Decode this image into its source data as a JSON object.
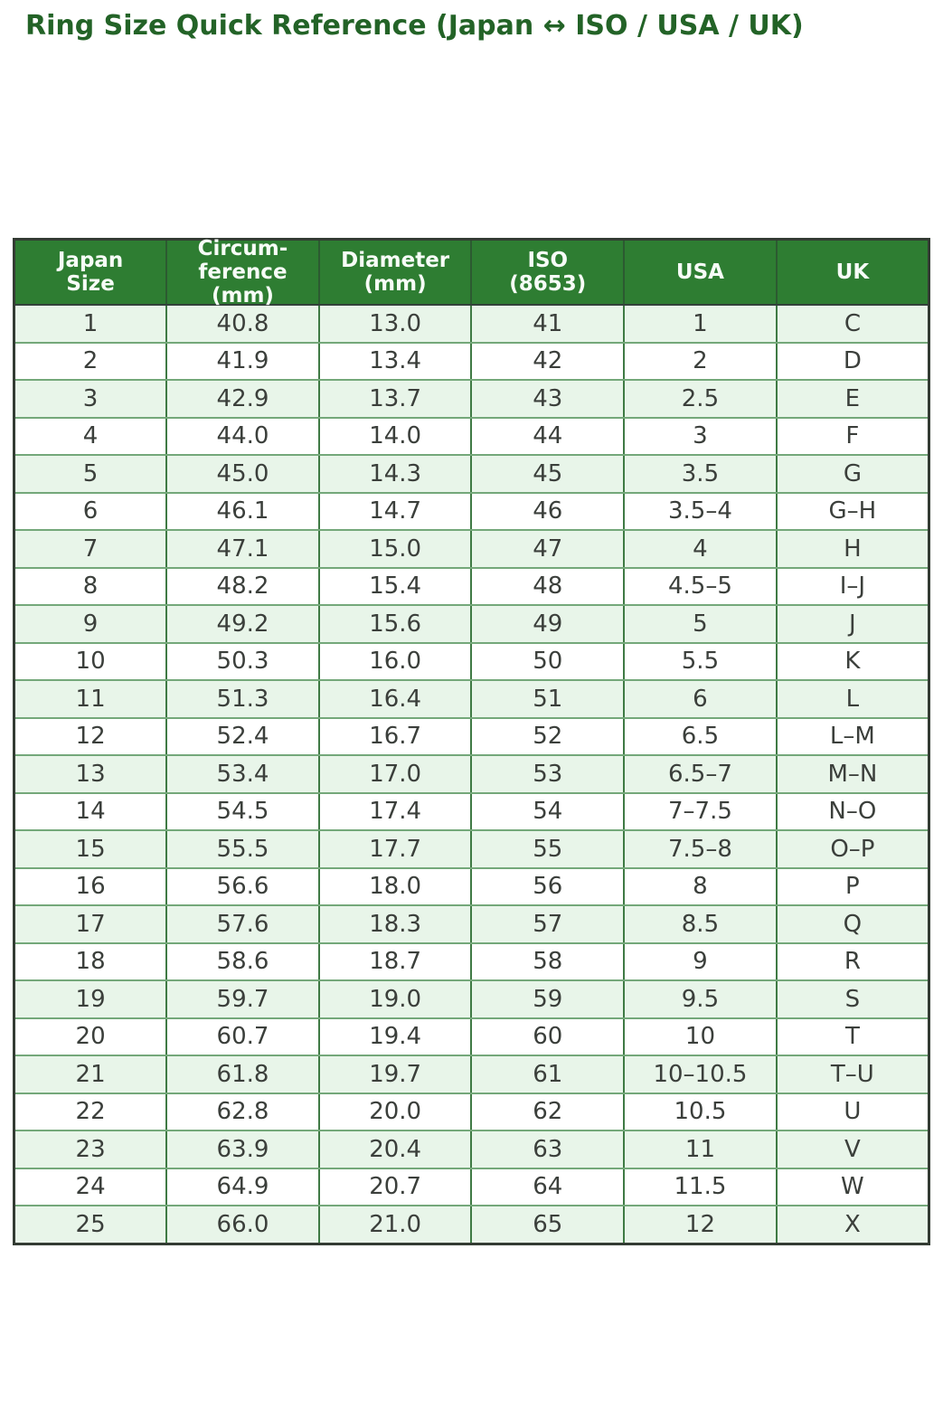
{
  "title": "Ring Size Quick Reference (Japan ↔ ISO / USA / UK)",
  "colors": {
    "title_green": "#236327",
    "header_bg": "#2e7d32",
    "header_text": "#f7fcf7",
    "row_alt_green": "#e8f5e9",
    "row_white": "#ffffff",
    "cell_text": "#3b3f3b",
    "border_vertical": "#3f7a44",
    "border_horizontal": "#74a87a",
    "outer_border": "#333b33"
  },
  "table": {
    "columns": [
      {
        "id": "japan-size",
        "label": "Japan\nSize"
      },
      {
        "id": "circumference",
        "label": "Circum-\nference\n(mm)"
      },
      {
        "id": "diameter",
        "label": "Diameter\n(mm)"
      },
      {
        "id": "iso",
        "label": "ISO\n(8653)"
      },
      {
        "id": "usa",
        "label": "USA"
      },
      {
        "id": "uk",
        "label": "UK"
      }
    ],
    "rows": [
      [
        "1",
        "40.8",
        "13.0",
        "41",
        "1",
        "C"
      ],
      [
        "2",
        "41.9",
        "13.4",
        "42",
        "2",
        "D"
      ],
      [
        "3",
        "42.9",
        "13.7",
        "43",
        "2.5",
        "E"
      ],
      [
        "4",
        "44.0",
        "14.0",
        "44",
        "3",
        "F"
      ],
      [
        "5",
        "45.0",
        "14.3",
        "45",
        "3.5",
        "G"
      ],
      [
        "6",
        "46.1",
        "14.7",
        "46",
        "3.5–4",
        "G–H"
      ],
      [
        "7",
        "47.1",
        "15.0",
        "47",
        "4",
        "H"
      ],
      [
        "8",
        "48.2",
        "15.4",
        "48",
        "4.5–5",
        "I–J"
      ],
      [
        "9",
        "49.2",
        "15.6",
        "49",
        "5",
        "J"
      ],
      [
        "10",
        "50.3",
        "16.0",
        "50",
        "5.5",
        "K"
      ],
      [
        "11",
        "51.3",
        "16.4",
        "51",
        "6",
        "L"
      ],
      [
        "12",
        "52.4",
        "16.7",
        "52",
        "6.5",
        "L–M"
      ],
      [
        "13",
        "53.4",
        "17.0",
        "53",
        "6.5–7",
        "M–N"
      ],
      [
        "14",
        "54.5",
        "17.4",
        "54",
        "7–7.5",
        "N–O"
      ],
      [
        "15",
        "55.5",
        "17.7",
        "55",
        "7.5–8",
        "O–P"
      ],
      [
        "16",
        "56.6",
        "18.0",
        "56",
        "8",
        "P"
      ],
      [
        "17",
        "57.6",
        "18.3",
        "57",
        "8.5",
        "Q"
      ],
      [
        "18",
        "58.6",
        "18.7",
        "58",
        "9",
        "R"
      ],
      [
        "19",
        "59.7",
        "19.0",
        "59",
        "9.5",
        "S"
      ],
      [
        "20",
        "60.7",
        "19.4",
        "60",
        "10",
        "T"
      ],
      [
        "21",
        "61.8",
        "19.7",
        "61",
        "10–10.5",
        "T–U"
      ],
      [
        "22",
        "62.8",
        "20.0",
        "62",
        "10.5",
        "U"
      ],
      [
        "23",
        "63.9",
        "20.4",
        "63",
        "11",
        "V"
      ],
      [
        "24",
        "64.9",
        "20.7",
        "64",
        "11.5",
        "W"
      ],
      [
        "25",
        "66.0",
        "21.0",
        "65",
        "12",
        "X"
      ]
    ]
  }
}
